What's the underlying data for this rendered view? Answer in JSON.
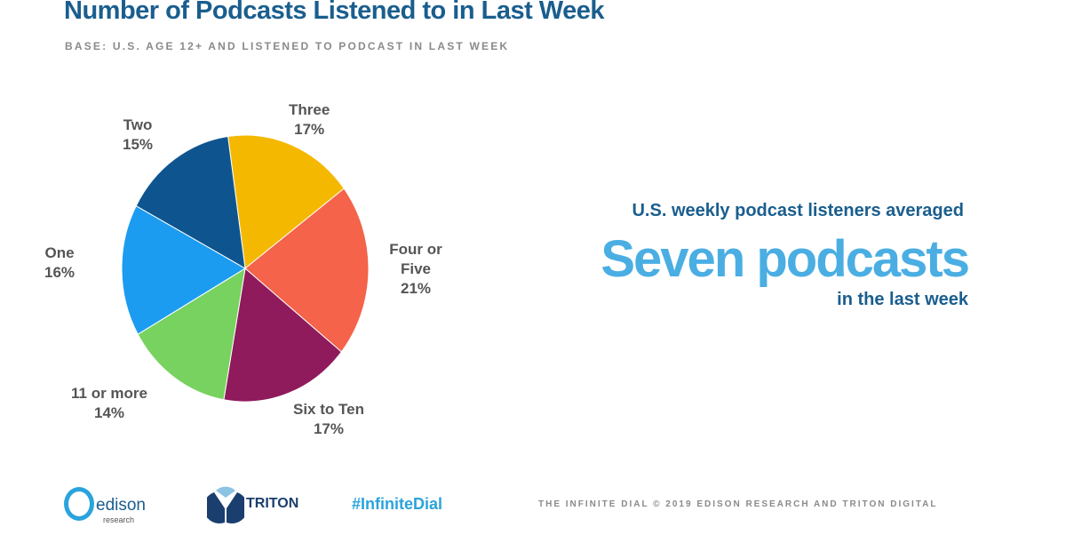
{
  "header": {
    "title": "Number of Podcasts Listened to in Last Week",
    "subtitle": "BASE: U.S. AGE 12+ AND LISTENED TO PODCAST IN LAST WEEK"
  },
  "chart_data": {
    "type": "pie",
    "title": "Number of Podcasts Listened to in Last Week",
    "categories": [
      "Three",
      "Four or Five",
      "Six to Ten",
      "11 or more",
      "One",
      "Two"
    ],
    "values": [
      17,
      21,
      17,
      14,
      16,
      15
    ],
    "labels": [
      "17%",
      "21%",
      "17%",
      "14%",
      "16%",
      "15%"
    ],
    "colors": [
      "#F5B800",
      "#F4634A",
      "#8F1A5C",
      "#78D25F",
      "#1B9CF0",
      "#0E5590"
    ]
  },
  "callout": {
    "line1": "U.S. weekly podcast listeners averaged",
    "line2": "Seven podcasts",
    "line3": "in the last week"
  },
  "footer": {
    "edison_name": "edison",
    "edison_sub": "research",
    "triton": "TRITON",
    "hashtag": "#InfiniteDial",
    "credit": "THE INFINITE DIAL   © 2019 EDISON RESEARCH AND TRITON DIGITAL"
  }
}
